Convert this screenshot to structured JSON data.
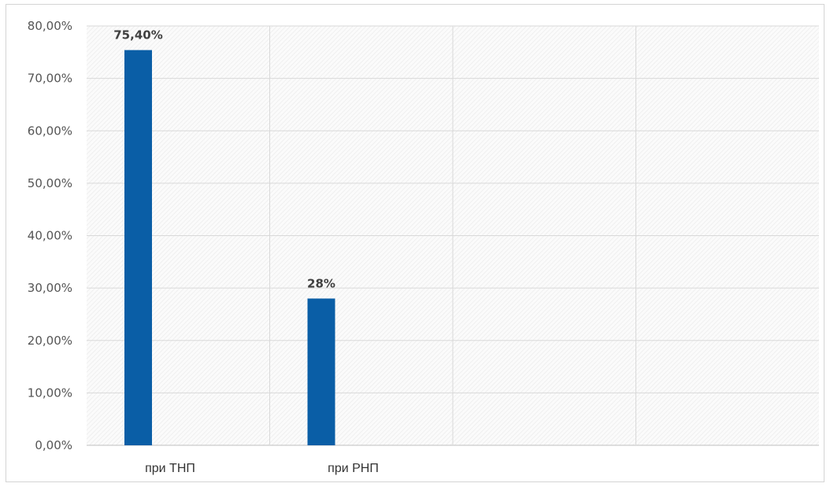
{
  "chart_data": {
    "type": "bar",
    "title": "",
    "xlabel": "",
    "ylabel": "",
    "categories": [
      "при ТНП",
      "при РНП",
      "",
      ""
    ],
    "values": [
      75.4,
      28,
      null,
      null
    ],
    "data_labels": [
      "75,40%",
      "28%",
      "",
      ""
    ],
    "ylim": [
      0,
      80
    ],
    "y_ticks": [
      0,
      10,
      20,
      30,
      40,
      50,
      60,
      70,
      80
    ],
    "y_tick_labels": [
      "0,00%",
      "10,00%",
      "20,00%",
      "30,00%",
      "40,00%",
      "50,00%",
      "60,00%",
      "70,00%",
      "80,00%"
    ],
    "grid": true,
    "legend": "none",
    "colors": {
      "bar": "#0a5ea6",
      "plot_hatch": "#ececec",
      "gridline": "#d9d9d9",
      "axis": "#bfbfbf"
    }
  }
}
